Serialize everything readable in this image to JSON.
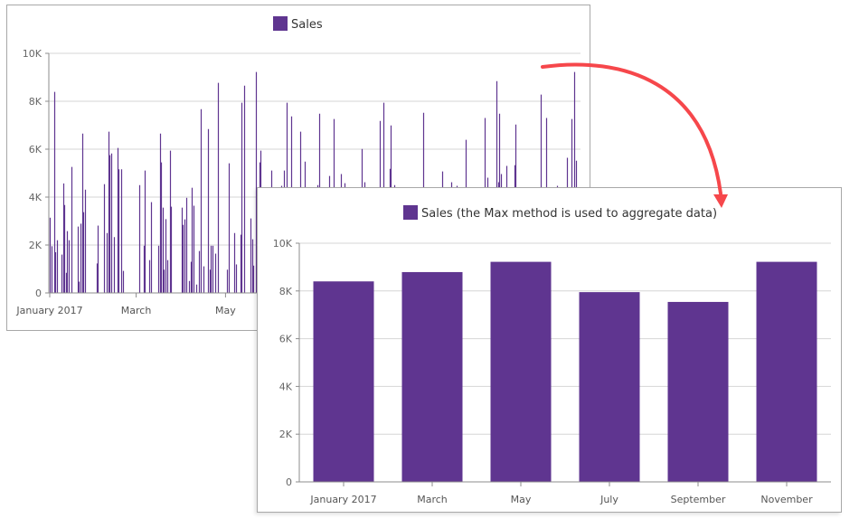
{
  "colors": {
    "series": "#5f3590",
    "grid": "#d6d6d6",
    "axis": "#8c8c8c",
    "text": "#333333",
    "arrow": "#f6474b"
  },
  "chart_data": [
    {
      "type": "bar",
      "legend": "Sales",
      "legend_position": "top-center",
      "ylim": [
        0,
        10000
      ],
      "y_ticks": [
        "0",
        "2K",
        "4K",
        "6K",
        "8K",
        "10K"
      ],
      "y_tick_values": [
        0,
        2000,
        4000,
        6000,
        8000,
        10000
      ],
      "x_ticks": [
        "January 2017",
        "March",
        "May"
      ],
      "x_tick_dates": [
        "2017-01-01",
        "2017-03-01",
        "2017-05-01"
      ],
      "grid": true,
      "points": [
        [
          "2017-01-01",
          3140
        ],
        [
          "2017-01-02",
          1950
        ],
        [
          "2017-01-04",
          8390
        ],
        [
          "2017-01-05",
          1700
        ],
        [
          "2017-01-06",
          2200
        ],
        [
          "2017-01-09",
          1600
        ],
        [
          "2017-01-10",
          4570
        ],
        [
          "2017-01-11",
          3670
        ],
        [
          "2017-01-12",
          840
        ],
        [
          "2017-01-13",
          2580
        ],
        [
          "2017-01-14",
          2200
        ],
        [
          "2017-01-16",
          5260
        ],
        [
          "2017-01-20",
          2770
        ],
        [
          "2017-01-21",
          470
        ],
        [
          "2017-01-22",
          2890
        ],
        [
          "2017-01-23",
          6650
        ],
        [
          "2017-01-24",
          3370
        ],
        [
          "2017-01-25",
          4310
        ],
        [
          "2017-02-02",
          1230
        ],
        [
          "2017-02-03",
          2810
        ],
        [
          "2017-02-07",
          4540
        ],
        [
          "2017-02-09",
          2500
        ],
        [
          "2017-02-10",
          6730
        ],
        [
          "2017-02-11",
          5750
        ],
        [
          "2017-02-12",
          5820
        ],
        [
          "2017-02-14",
          2330
        ],
        [
          "2017-02-16",
          6050
        ],
        [
          "2017-02-17",
          5160
        ],
        [
          "2017-02-19",
          5160
        ],
        [
          "2017-02-20",
          920
        ],
        [
          "2017-03-03",
          4500
        ],
        [
          "2017-03-06",
          1970
        ],
        [
          "2017-03-07",
          5110
        ],
        [
          "2017-03-10",
          1370
        ],
        [
          "2017-03-11",
          3790
        ],
        [
          "2017-03-16",
          1970
        ],
        [
          "2017-03-17",
          6650
        ],
        [
          "2017-03-18",
          5450
        ],
        [
          "2017-03-19",
          3560
        ],
        [
          "2017-03-20",
          970
        ],
        [
          "2017-03-21",
          3080
        ],
        [
          "2017-03-22",
          1370
        ],
        [
          "2017-03-24",
          5940
        ],
        [
          "2017-03-25",
          3600
        ],
        [
          "2017-04-01",
          3560
        ],
        [
          "2017-04-02",
          2840
        ],
        [
          "2017-04-03",
          3070
        ],
        [
          "2017-04-04",
          3970
        ],
        [
          "2017-04-06",
          500
        ],
        [
          "2017-04-07",
          1300
        ],
        [
          "2017-04-08",
          4390
        ],
        [
          "2017-04-09",
          3640
        ],
        [
          "2017-04-11",
          350
        ],
        [
          "2017-04-13",
          1750
        ],
        [
          "2017-04-14",
          7670
        ],
        [
          "2017-04-16",
          1110
        ],
        [
          "2017-04-19",
          6840
        ],
        [
          "2017-04-20",
          970
        ],
        [
          "2017-04-21",
          1970
        ],
        [
          "2017-04-22",
          1970
        ],
        [
          "2017-04-24",
          1640
        ],
        [
          "2017-04-26",
          8770
        ],
        [
          "2017-05-02",
          970
        ],
        [
          "2017-05-03",
          5410
        ],
        [
          "2017-05-07",
          2500
        ],
        [
          "2017-05-08",
          1190
        ],
        [
          "2017-05-11",
          2430
        ],
        [
          "2017-05-12",
          7940
        ],
        [
          "2017-05-14",
          8650
        ],
        [
          "2017-05-18",
          3110
        ],
        [
          "2017-05-19",
          2240
        ],
        [
          "2017-05-20",
          1140
        ],
        [
          "2017-05-22",
          9220
        ],
        [
          "2017-05-24",
          5450
        ],
        [
          "2017-05-25",
          5940
        ],
        [
          "2017-06-01",
          5110
        ],
        [
          "2017-06-08",
          4470
        ],
        [
          "2017-06-10",
          5110
        ],
        [
          "2017-06-12",
          7940
        ],
        [
          "2017-06-15",
          7370
        ],
        [
          "2017-06-21",
          6730
        ],
        [
          "2017-06-24",
          5480
        ],
        [
          "2017-07-03",
          4500
        ],
        [
          "2017-07-04",
          7480
        ],
        [
          "2017-07-11",
          4880
        ],
        [
          "2017-07-14",
          7260
        ],
        [
          "2017-07-19",
          4960
        ],
        [
          "2017-07-21",
          4580
        ],
        [
          "2017-08-02",
          6010
        ],
        [
          "2017-08-04",
          4620
        ],
        [
          "2017-08-14",
          7180
        ],
        [
          "2017-08-17",
          7940
        ],
        [
          "2017-08-21",
          5180
        ],
        [
          "2017-08-22",
          6990
        ],
        [
          "2017-08-24",
          4500
        ],
        [
          "2017-09-13",
          7520
        ],
        [
          "2017-09-26",
          5070
        ],
        [
          "2017-10-02",
          4620
        ],
        [
          "2017-10-06",
          4470
        ],
        [
          "2017-10-12",
          6390
        ],
        [
          "2017-10-25",
          7300
        ],
        [
          "2017-10-27",
          4810
        ],
        [
          "2017-11-02",
          8840
        ],
        [
          "2017-11-03",
          4620
        ],
        [
          "2017-11-04",
          7480
        ],
        [
          "2017-11-05",
          4960
        ],
        [
          "2017-11-09",
          5300
        ],
        [
          "2017-11-14",
          5330
        ],
        [
          "2017-11-15",
          7030
        ],
        [
          "2017-12-02",
          8280
        ],
        [
          "2017-12-06",
          7300
        ],
        [
          "2017-12-13",
          4470
        ],
        [
          "2017-12-20",
          5640
        ],
        [
          "2017-12-23",
          7260
        ],
        [
          "2017-12-25",
          9220
        ],
        [
          "2017-12-26",
          5520
        ]
      ]
    },
    {
      "type": "bar",
      "legend": "Sales (the Max method is used to aggregate data)",
      "legend_position": "top-center",
      "ylim": [
        0,
        10000
      ],
      "y_ticks": [
        "0",
        "2K",
        "4K",
        "6K",
        "8K",
        "10K"
      ],
      "y_tick_values": [
        0,
        2000,
        4000,
        6000,
        8000,
        10000
      ],
      "grid": true,
      "categories": [
        "January 2017",
        "March",
        "May",
        "July",
        "September",
        "November"
      ],
      "values": [
        8400,
        8790,
        9220,
        7950,
        7540,
        9220
      ]
    }
  ]
}
